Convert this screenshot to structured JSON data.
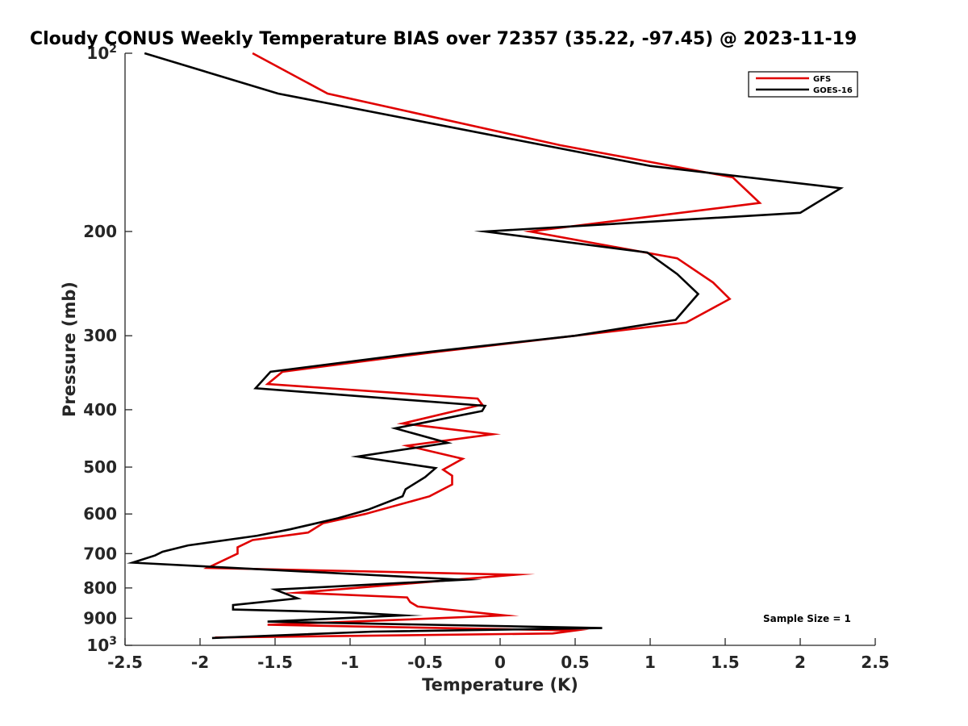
{
  "chart_data": {
    "type": "line",
    "title": "Cloudy CONUS Weekly Temperature BIAS over 72357 (35.22, -97.45) @ 2023-11-19",
    "xlabel": "Temperature (K)",
    "ylabel": "Pressure (mb)",
    "xlim": [
      -2.5,
      2.5
    ],
    "ylim": [
      100,
      1000
    ],
    "y_scale": "log",
    "y_reversed": true,
    "x_ticks": [
      "-2.5",
      "-2",
      "-1.5",
      "-1",
      "-0.5",
      "0",
      "0.5",
      "1",
      "1.5",
      "2",
      "2.5"
    ],
    "y_ticks": [
      {
        "base": "10",
        "exp": "2",
        "value": 100
      },
      {
        "label": "200",
        "value": 200
      },
      {
        "label": "300",
        "value": 300
      },
      {
        "label": "400",
        "value": 400
      },
      {
        "label": "500",
        "value": 500
      },
      {
        "label": "600",
        "value": 600
      },
      {
        "label": "700",
        "value": 700
      },
      {
        "label": "800",
        "value": 800
      },
      {
        "label": "900",
        "value": 900
      },
      {
        "base": "10",
        "exp": "3",
        "value": 1000
      }
    ],
    "grid": false,
    "legend_position": "top-right",
    "annotation": "Sample Size = 1",
    "series": [
      {
        "name": "GFS",
        "color": "#e00000",
        "points": [
          [
            -1.65,
            100
          ],
          [
            -1.15,
            117
          ],
          [
            0.4,
            143
          ],
          [
            1.55,
            162
          ],
          [
            1.73,
            179
          ],
          [
            0.2,
            200
          ],
          [
            1.18,
            222
          ],
          [
            1.42,
            244
          ],
          [
            1.53,
            260
          ],
          [
            1.24,
            285
          ],
          [
            0.5,
            300
          ],
          [
            -0.45,
            320
          ],
          [
            -1.45,
            345
          ],
          [
            -1.55,
            362
          ],
          [
            -0.15,
            383
          ],
          [
            -0.12,
            392
          ],
          [
            -0.65,
            422
          ],
          [
            -0.05,
            440
          ],
          [
            -0.62,
            460
          ],
          [
            -0.25,
            484
          ],
          [
            -0.38,
            505
          ],
          [
            -0.32,
            517
          ],
          [
            -0.32,
            535
          ],
          [
            -0.47,
            560
          ],
          [
            -0.9,
            600
          ],
          [
            -1.18,
            622
          ],
          [
            -1.28,
            645
          ],
          [
            -1.65,
            664
          ],
          [
            -1.75,
            683
          ],
          [
            -1.75,
            700
          ],
          [
            -1.95,
            740
          ],
          [
            0.1,
            760
          ],
          [
            -1.35,
            815
          ],
          [
            -0.62,
            830
          ],
          [
            -0.6,
            845
          ],
          [
            -0.55,
            860
          ],
          [
            0.03,
            890
          ],
          [
            -0.65,
            905
          ],
          [
            -1.55,
            923
          ],
          [
            0.5,
            944
          ],
          [
            0.35,
            955
          ],
          [
            -1.9,
            970
          ]
        ]
      },
      {
        "name": "GOES-16",
        "color": "#000000",
        "points": [
          [
            -2.37,
            100
          ],
          [
            -1.48,
            117
          ],
          [
            1.0,
            155
          ],
          [
            2.27,
            169
          ],
          [
            2.0,
            186
          ],
          [
            -0.1,
            200
          ],
          [
            0.98,
            217
          ],
          [
            1.18,
            236
          ],
          [
            1.32,
            255
          ],
          [
            1.17,
            282
          ],
          [
            0.5,
            300
          ],
          [
            -0.6,
            322
          ],
          [
            -1.53,
            345
          ],
          [
            -1.63,
            368
          ],
          [
            -0.1,
            394
          ],
          [
            -0.12,
            402
          ],
          [
            -0.7,
            430
          ],
          [
            -0.35,
            455
          ],
          [
            -0.95,
            480
          ],
          [
            -0.43,
            502
          ],
          [
            -0.5,
            520
          ],
          [
            -0.63,
            545
          ],
          [
            -0.65,
            560
          ],
          [
            -0.88,
            590
          ],
          [
            -1.08,
            610
          ],
          [
            -1.4,
            637
          ],
          [
            -1.62,
            653
          ],
          [
            -2.08,
            678
          ],
          [
            -2.25,
            695
          ],
          [
            -2.3,
            705
          ],
          [
            -2.45,
            725
          ],
          [
            -0.25,
            775
          ],
          [
            -1.5,
            805
          ],
          [
            -1.35,
            833
          ],
          [
            -1.78,
            855
          ],
          [
            -1.78,
            870
          ],
          [
            -1.0,
            880
          ],
          [
            -0.65,
            890
          ],
          [
            -1.55,
            912
          ],
          [
            0.68,
            935
          ],
          [
            -0.85,
            948
          ],
          [
            -1.92,
            972
          ]
        ]
      }
    ]
  }
}
